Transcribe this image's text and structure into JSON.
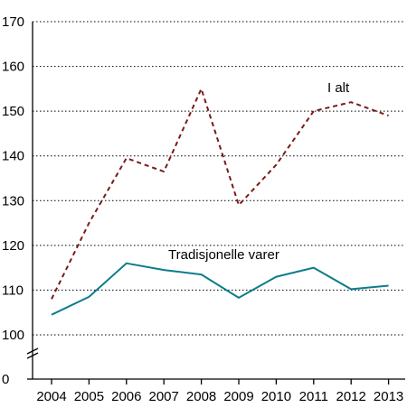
{
  "chart_data": {
    "type": "line",
    "title": "",
    "xlabel": "",
    "ylabel": "",
    "x": [
      "2004",
      "2005",
      "2006",
      "2007",
      "2008",
      "2009",
      "2010",
      "2011",
      "2012",
      "2013"
    ],
    "yticks": [
      0,
      100,
      110,
      120,
      130,
      140,
      150,
      160,
      170
    ],
    "ylim": [
      100,
      170
    ],
    "axis_break": true,
    "grid": "horizontal dotted",
    "legend": "none",
    "series": [
      {
        "name": "I alt",
        "values": [
          108,
          125,
          139.5,
          136.5,
          155,
          129,
          138,
          150,
          152,
          149
        ],
        "color": "#7a1a1a",
        "style": "dashed"
      },
      {
        "name": "Tradisjonelle varer",
        "values": [
          104.5,
          108.5,
          116,
          114.5,
          113.5,
          108.3,
          113,
          115,
          110.2,
          111
        ],
        "color": "#0e7c8c",
        "style": "solid"
      }
    ]
  }
}
